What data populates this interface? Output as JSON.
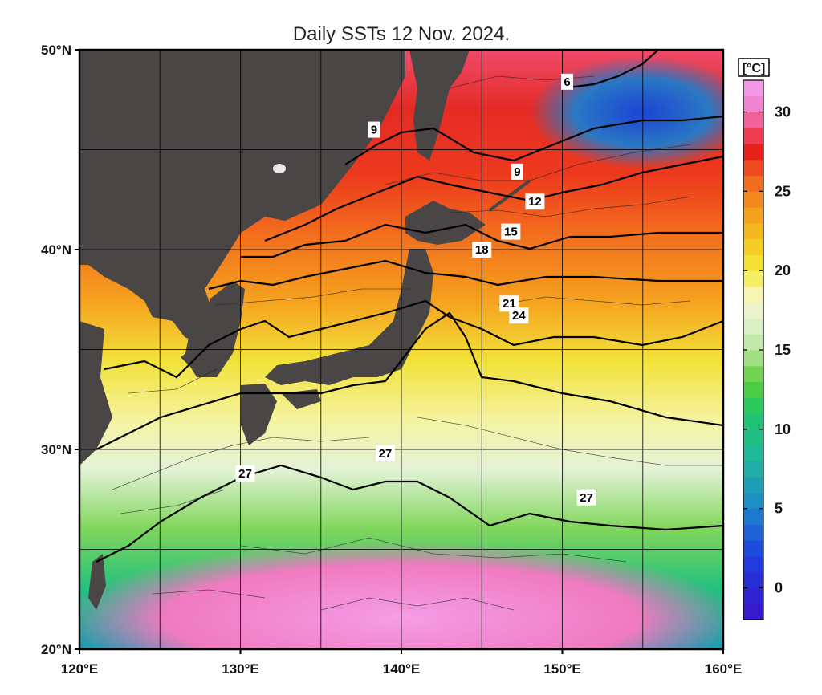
{
  "title": "Daily SSTs 12 Nov. 2024.",
  "map": {
    "lat_range": [
      20,
      50
    ],
    "lon_range": [
      120,
      160
    ],
    "lat_ticks": [
      {
        "value": 50,
        "label": "50°N"
      },
      {
        "value": 40,
        "label": "40°N"
      },
      {
        "value": 30,
        "label": "30°N"
      },
      {
        "value": 20,
        "label": "20°N"
      }
    ],
    "lon_ticks": [
      {
        "value": 120,
        "label": "120°E"
      },
      {
        "value": 130,
        "label": "130°E"
      },
      {
        "value": 140,
        "label": "140°E"
      },
      {
        "value": 150,
        "label": "150°E"
      },
      {
        "value": 160,
        "label": "160°E"
      }
    ],
    "grid_lats": [
      20,
      25,
      30,
      35,
      40,
      45,
      50
    ],
    "grid_lons": [
      120,
      125,
      130,
      135,
      140,
      145,
      150,
      155,
      160
    ],
    "land_color": "#4a4646",
    "contour_labels": [
      {
        "text": "6",
        "lon": 150.3,
        "lat": 48.4
      },
      {
        "text": "9",
        "lon": 138.3,
        "lat": 46.0
      },
      {
        "text": "9",
        "lon": 147.2,
        "lat": 43.9
      },
      {
        "text": "12",
        "lon": 148.3,
        "lat": 42.4
      },
      {
        "text": "15",
        "lon": 146.8,
        "lat": 40.9
      },
      {
        "text": "18",
        "lon": 145.0,
        "lat": 40.0
      },
      {
        "text": "21",
        "lon": 146.7,
        "lat": 37.3
      },
      {
        "text": "24",
        "lon": 147.3,
        "lat": 36.7
      },
      {
        "text": "27",
        "lon": 139.0,
        "lat": 29.8
      },
      {
        "text": "27",
        "lon": 130.3,
        "lat": 28.8
      },
      {
        "text": "27",
        "lon": 151.5,
        "lat": 27.6
      }
    ]
  },
  "colorbar": {
    "unit": "[°C]",
    "min": -2,
    "max": 32,
    "ticks": [
      30,
      25,
      20,
      15,
      10,
      5,
      0
    ],
    "stops": [
      {
        "t": -2,
        "color": "#3a13c9"
      },
      {
        "t": 2,
        "color": "#1f3fe0"
      },
      {
        "t": 5,
        "color": "#1a86c9"
      },
      {
        "t": 8,
        "color": "#22b5a0"
      },
      {
        "t": 11,
        "color": "#1ec66a"
      },
      {
        "t": 13,
        "color": "#5bcc3a"
      },
      {
        "t": 15,
        "color": "#b5e59a"
      },
      {
        "t": 17,
        "color": "#e6f3d5"
      },
      {
        "t": 18.5,
        "color": "#f6f5b4"
      },
      {
        "t": 20,
        "color": "#f2ea3a"
      },
      {
        "t": 22,
        "color": "#f4c21c"
      },
      {
        "t": 24,
        "color": "#f4961e"
      },
      {
        "t": 26,
        "color": "#f06020"
      },
      {
        "t": 27.5,
        "color": "#e8201a"
      },
      {
        "t": 29,
        "color": "#ef4a6a"
      },
      {
        "t": 30,
        "color": "#f07ac5"
      },
      {
        "t": 32,
        "color": "#f4a0f2"
      }
    ]
  }
}
